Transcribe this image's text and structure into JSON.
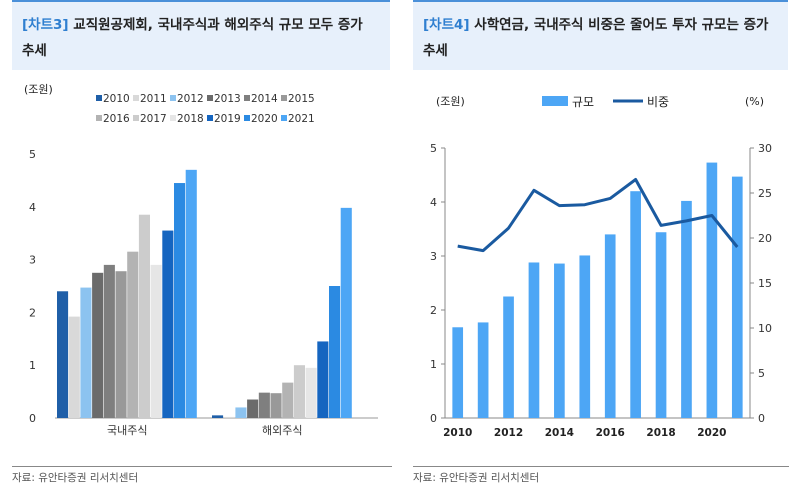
{
  "left_panel": {
    "tag": "[차트3]",
    "title": "교직원공제회, 국내주식과 해외주식 규모 모두 증가 추세",
    "source": "자료: 유안타증권 리서치센터"
  },
  "right_panel": {
    "tag": "[차트4]",
    "title": "사학연금, 국내주식 비중은 줄어도 투자 규모는 증가 추세",
    "source": "자료: 유안타증권 리서치센터"
  },
  "chart_data": [
    {
      "type": "bar",
      "title": "",
      "ylabel": "(조원)",
      "xlabel": "",
      "ylim": [
        0,
        5
      ],
      "yticks": [
        0,
        1,
        2,
        3,
        4,
        5
      ],
      "categories": [
        "국내주식",
        "해외주식"
      ],
      "legend_position": "top",
      "series": [
        {
          "name": "2010",
          "color": "#1f5fa8",
          "values": [
            2.4,
            0.05
          ]
        },
        {
          "name": "2011",
          "color": "#d9d9d9",
          "values": [
            1.92,
            0.02
          ]
        },
        {
          "name": "2012",
          "color": "#8cc3f0",
          "values": [
            2.47,
            0.2
          ]
        },
        {
          "name": "2013",
          "color": "#6b6b6b",
          "values": [
            2.75,
            0.35
          ]
        },
        {
          "name": "2014",
          "color": "#7f7f7f",
          "values": [
            2.9,
            0.48
          ]
        },
        {
          "name": "2015",
          "color": "#999999",
          "values": [
            2.78,
            0.47
          ]
        },
        {
          "name": "2016",
          "color": "#b3b3b3",
          "values": [
            3.15,
            0.67
          ]
        },
        {
          "name": "2017",
          "color": "#cccccc",
          "values": [
            3.85,
            1.0
          ]
        },
        {
          "name": "2018",
          "color": "#e6e6e6",
          "values": [
            2.9,
            0.95
          ]
        },
        {
          "name": "2019",
          "color": "#1565c0",
          "values": [
            3.55,
            1.45
          ]
        },
        {
          "name": "2020",
          "color": "#2b8ae2",
          "values": [
            4.45,
            2.5
          ]
        },
        {
          "name": "2021",
          "color": "#4da6f5",
          "values": [
            4.7,
            3.98
          ]
        }
      ]
    },
    {
      "type": "bar+line",
      "title": "",
      "ylabel_left": "(조원)",
      "ylabel_right": "(%)",
      "ylim_left": [
        0,
        5
      ],
      "ylim_right": [
        0,
        30
      ],
      "yticks_left": [
        0,
        1,
        2,
        3,
        4,
        5
      ],
      "yticks_right": [
        0,
        5,
        10,
        15,
        20,
        25,
        30
      ],
      "x": [
        2010,
        2011,
        2012,
        2013,
        2014,
        2015,
        2016,
        2017,
        2018,
        2019,
        2020,
        2021
      ],
      "xticks": [
        2010,
        2012,
        2014,
        2016,
        2018,
        2020
      ],
      "legend_position": "top",
      "series": [
        {
          "name": "규모",
          "type": "bar",
          "axis": "left",
          "color": "#4da6f5",
          "values": [
            1.68,
            1.77,
            2.25,
            2.88,
            2.86,
            3.01,
            3.4,
            4.2,
            3.44,
            4.02,
            4.73,
            4.47
          ]
        },
        {
          "name": "비중",
          "type": "line",
          "axis": "right",
          "color": "#1a5aa0",
          "values": [
            19.1,
            18.6,
            21.1,
            25.3,
            23.6,
            23.7,
            24.4,
            26.5,
            21.4,
            21.9,
            22.5,
            19.0
          ]
        }
      ]
    }
  ]
}
